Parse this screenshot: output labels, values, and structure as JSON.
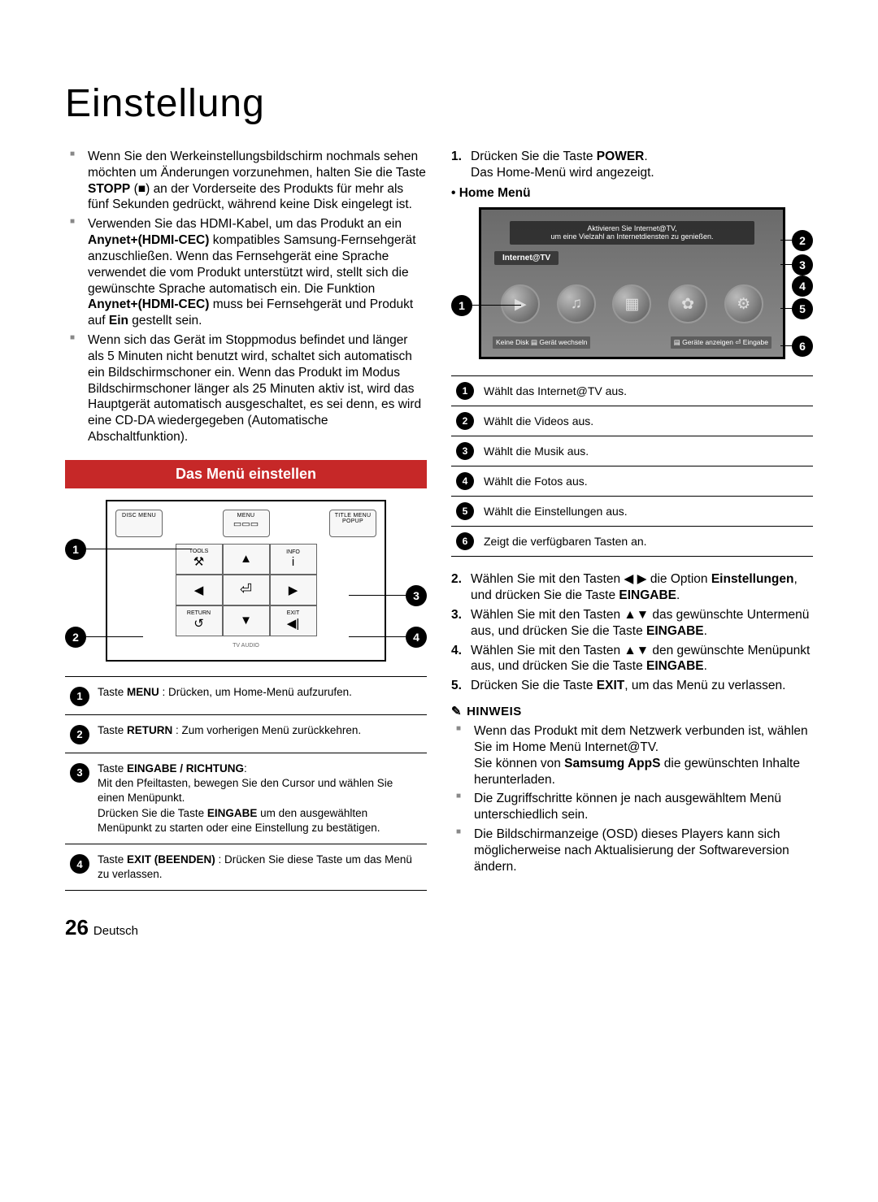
{
  "page_title": "Einstellung",
  "left": {
    "bullets": [
      "Wenn Sie den Werkeinstellungsbildschirm nochmals sehen möchten um Änderungen vorzunehmen, halten Sie die Taste <b>STOPP</b> (■) an der Vorderseite des Produkts für mehr als fünf Sekunden gedrückt, während keine Disk eingelegt ist.",
      "Verwenden Sie das HDMI-Kabel, um das Produkt an ein <b>Anynet+(HDMI-CEC)</b> kompatibles Samsung-Fernsehgerät anzuschließen. Wenn das Fernsehgerät eine Sprache verwendet die vom Produkt unterstützt wird, stellt sich die gewünschte Sprache automatisch ein. Die Funktion <b>Anynet+(HDMI-CEC)</b> muss bei Fernsehgerät und Produkt auf <b>Ein</b> gestellt sein.",
      "Wenn sich das Gerät im Stoppmodus befindet und länger als 5 Minuten nicht benutzt wird, schaltet sich automatisch ein Bildschirmschoner ein. Wenn das Produkt im Modus Bildschirmschoner länger als 25 Minuten aktiv ist, wird das Hauptgerät automatisch ausgeschaltet, es sei denn, es wird eine CD-DA wiedergegeben (Automatische Abschaltfunktion)."
    ],
    "section_header": "Das Menü einstellen",
    "remote": {
      "top_row": [
        "DISC MENU",
        "MENU",
        "TITLE MENU"
      ],
      "top_row_sub": [
        "",
        "▭▭▭",
        "POPUP"
      ],
      "row2": [
        "TOOLS",
        "",
        "INFO"
      ],
      "row2_icon": [
        "⚒",
        "",
        "i"
      ],
      "dpad": {
        "up": "▲",
        "down": "▼",
        "left": "◀",
        "right": "▶",
        "center": "⏎"
      },
      "bottom_row": [
        "RETURN",
        "",
        "EXIT"
      ],
      "bottom_row_icon": [
        "↺",
        "",
        "◀|"
      ],
      "tiny": "TV AUDIO"
    },
    "remote_callouts": [
      "1",
      "2",
      "3",
      "4"
    ],
    "remote_table": [
      "Taste <b>MENU</b> : Drücken, um Home-Menü aufzurufen.",
      "Taste <b>RETURN</b> : Zum vorherigen Menü zurückkehren.",
      "Taste <b>EINGABE / RICHTUNG</b>:<br>Mit den Pfeiltasten, bewegen Sie den Cursor und wählen Sie einen Menüpunkt.<br>Drücken Sie die Taste <b>EINGABE</b> um den ausgewählten Menüpunkt zu starten oder eine Einstellung zu bestätigen.",
      "Taste <b>EXIT (BEENDEN)</b> : Drücken Sie diese Taste um das Menü zu verlassen."
    ]
  },
  "right": {
    "step1_num": "1.",
    "step1": "Drücken Sie die Taste <b>POWER</b>.<br>Das Home-Menü wird angezeigt.",
    "home_menu_label": "Home Menü",
    "tv": {
      "banner_line1": "Aktivieren Sie Internet@TV,",
      "banner_line2": "um eine Vielzahl an Internetdiensten zu genießen.",
      "label": "Internet@TV",
      "icons": [
        "▶",
        "♫",
        "▦",
        "✿",
        "⚙"
      ],
      "footer_left": "Keine Disk  ▤ Gerät wechseln",
      "footer_right": "▤ Geräte anzeigen  ⏎ Eingabe"
    },
    "home_callouts": [
      "1",
      "2",
      "3",
      "4",
      "5",
      "6"
    ],
    "home_table": [
      "Wählt das Internet@TV aus.",
      "Wählt die Videos aus.",
      "Wählt die Musik aus.",
      "Wählt die Fotos aus.",
      "Wählt die Einstellungen aus.",
      "Zeigt die verfügbaren Tasten an."
    ],
    "steps_rest": [
      {
        "n": "2.",
        "t": "Wählen Sie mit den Tasten ◀ ▶ die Option <b>Einstellungen</b>, und drücken Sie die Taste <b>EINGABE</b>."
      },
      {
        "n": "3.",
        "t": "Wählen Sie mit den Tasten ▲▼ das gewünschte Untermenü aus, und drücken Sie die Taste <b>EINGABE</b>."
      },
      {
        "n": "4.",
        "t": "Wählen Sie mit den Tasten ▲▼ den gewünschte Menüpunkt aus, und drücken Sie die Taste <b>EINGABE</b>."
      },
      {
        "n": "5.",
        "t": "Drücken Sie die Taste <b>EXIT</b>, um das Menü zu verlassen."
      }
    ],
    "hinweis_label": "HINWEIS",
    "hinweis": [
      "Wenn das Produkt mit dem Netzwerk verbunden ist, wählen Sie im Home Menü Internet@TV.<br>Sie können von <b>Samsumg AppS</b> die gewünschten Inhalte herunterladen.",
      "Die Zugriffschritte können je nach ausgewähltem Menü unterschiedlich sein.",
      "Die Bildschirmanzeige (OSD) dieses Players kann sich möglicherweise nach Aktualisierung der Softwareversion ändern."
    ]
  },
  "page_number": "26",
  "page_lang": "Deutsch"
}
